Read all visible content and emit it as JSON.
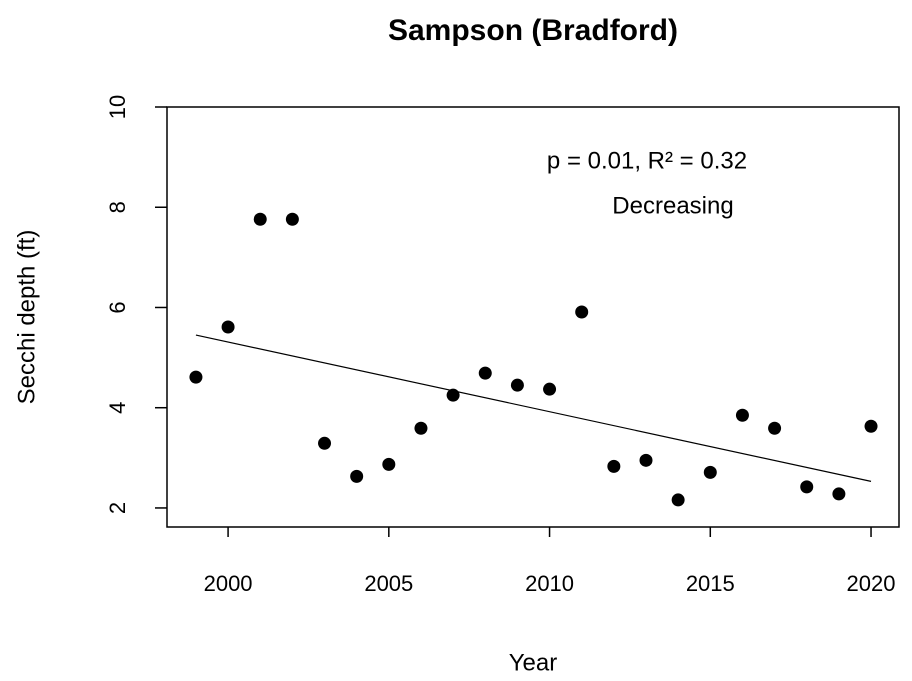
{
  "chart_data": {
    "type": "scatter",
    "title": "Sampson (Bradford)",
    "x_label": "Year",
    "y_label": "Secchi depth (ft)",
    "x": [
      1999,
      2000,
      2001,
      2002,
      2003,
      2004,
      2005,
      2006,
      2007,
      2008,
      2009,
      2010,
      2011,
      2012,
      2013,
      2014,
      2015,
      2016,
      2017,
      2018,
      2019,
      2020
    ],
    "values": [
      4.61,
      5.61,
      7.76,
      7.76,
      3.29,
      2.63,
      2.87,
      3.59,
      4.25,
      4.69,
      4.45,
      4.37,
      5.91,
      2.83,
      2.95,
      2.16,
      2.71,
      3.85,
      3.59,
      2.42,
      2.28,
      3.63
    ],
    "color": "#000000",
    "trend": {
      "x": [
        1999,
        2020
      ],
      "values": [
        5.45,
        2.53
      ]
    },
    "annotations": [
      "p = 0.01, R² = 0.32",
      "Decreasing"
    ],
    "xlim": [
      1998.1,
      2020.87
    ],
    "ylim": [
      1.62,
      10
    ],
    "xticks": [
      2000,
      2005,
      2010,
      2015,
      2020
    ],
    "yticks": [
      2,
      4,
      6,
      8,
      10
    ],
    "grid": false
  }
}
